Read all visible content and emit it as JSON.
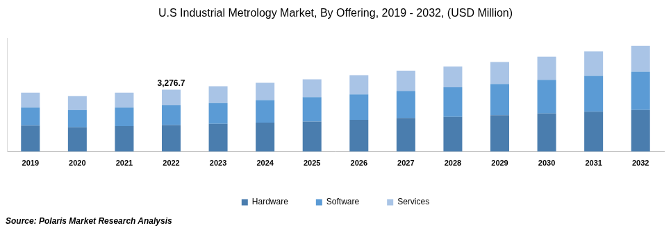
{
  "chart_data": {
    "type": "bar",
    "title": "U.S Industrial Metrology Market, By Offering, 2019 - 2032, (USD Million)",
    "categories": [
      "2019",
      "2020",
      "2021",
      "2022",
      "2023",
      "2024",
      "2025",
      "2026",
      "2027",
      "2028",
      "2029",
      "2030",
      "2031",
      "2032"
    ],
    "series": [
      {
        "name": "Hardware",
        "color": "#4a7dae",
        "values": [
          1378,
          1286,
          1347,
          1408.5,
          1470,
          1531,
          1592,
          1684,
          1776,
          1837,
          1929,
          2021,
          2113,
          2205
        ]
      },
      {
        "name": "Software",
        "color": "#5b9bd5",
        "values": [
          949,
          919,
          980,
          1041.1,
          1102,
          1194,
          1286,
          1347,
          1439,
          1562,
          1653,
          1776,
          1898,
          2021
        ]
      },
      {
        "name": "Services",
        "color": "#a9c4e6",
        "values": [
          796,
          735,
          796,
          827.1,
          888,
          919,
          949,
          1010,
          1072,
          1102,
          1164,
          1225,
          1286,
          1378
        ]
      }
    ],
    "stacked": true,
    "ylim": [
      0,
      6000
    ],
    "tick_labels": "x",
    "grid": false,
    "legend": "bottom",
    "annotations": [
      {
        "x": "2022",
        "y": 3276.7,
        "text": "3,276.7"
      }
    ],
    "source": "Source: Polaris Market Research Analysis"
  }
}
